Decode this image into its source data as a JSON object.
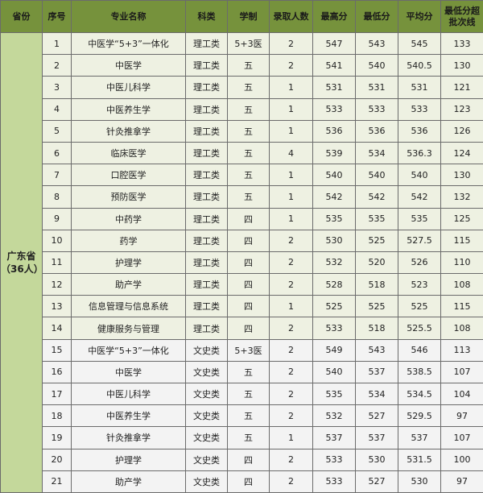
{
  "headers": [
    "省份",
    "序号",
    "专业名称",
    "科类",
    "学制",
    "录取人数",
    "最高分",
    "最低分",
    "平均分",
    "最低分超批次线"
  ],
  "province": {
    "name": "广东省",
    "count": "（36人）"
  },
  "colors": {
    "header": "#76923c",
    "province": "#c4d89b",
    "science_rows": "#eef1e2",
    "arts_rows": "#f3f3f3"
  },
  "rows": [
    [
      "1",
      "中医学“5+3”一体化",
      "理工类",
      "5+3医",
      "2",
      "547",
      "543",
      "545",
      "133"
    ],
    [
      "2",
      "中医学",
      "理工类",
      "五",
      "2",
      "541",
      "540",
      "540.5",
      "130"
    ],
    [
      "3",
      "中医儿科学",
      "理工类",
      "五",
      "1",
      "531",
      "531",
      "531",
      "121"
    ],
    [
      "4",
      "中医养生学",
      "理工类",
      "五",
      "1",
      "533",
      "533",
      "533",
      "123"
    ],
    [
      "5",
      "针灸推拿学",
      "理工类",
      "五",
      "1",
      "536",
      "536",
      "536",
      "126"
    ],
    [
      "6",
      "临床医学",
      "理工类",
      "五",
      "4",
      "539",
      "534",
      "536.3",
      "124"
    ],
    [
      "7",
      "口腔医学",
      "理工类",
      "五",
      "1",
      "540",
      "540",
      "540",
      "130"
    ],
    [
      "8",
      "预防医学",
      "理工类",
      "五",
      "1",
      "542",
      "542",
      "542",
      "132"
    ],
    [
      "9",
      "中药学",
      "理工类",
      "四",
      "1",
      "535",
      "535",
      "535",
      "125"
    ],
    [
      "10",
      "药学",
      "理工类",
      "四",
      "2",
      "530",
      "525",
      "527.5",
      "115"
    ],
    [
      "11",
      "护理学",
      "理工类",
      "四",
      "2",
      "532",
      "520",
      "526",
      "110"
    ],
    [
      "12",
      "助产学",
      "理工类",
      "四",
      "2",
      "528",
      "518",
      "523",
      "108"
    ],
    [
      "13",
      "信息管理与信息系统",
      "理工类",
      "四",
      "1",
      "525",
      "525",
      "525",
      "115"
    ],
    [
      "14",
      "健康服务与管理",
      "理工类",
      "四",
      "2",
      "533",
      "518",
      "525.5",
      "108"
    ],
    [
      "15",
      "中医学“5+3”一体化",
      "文史类",
      "5+3医",
      "2",
      "549",
      "543",
      "546",
      "113"
    ],
    [
      "16",
      "中医学",
      "文史类",
      "五",
      "2",
      "540",
      "537",
      "538.5",
      "107"
    ],
    [
      "17",
      "中医儿科学",
      "文史类",
      "五",
      "2",
      "535",
      "534",
      "534.5",
      "104"
    ],
    [
      "18",
      "中医养生学",
      "文史类",
      "五",
      "2",
      "532",
      "527",
      "529.5",
      "97"
    ],
    [
      "19",
      "针灸推拿学",
      "文史类",
      "五",
      "1",
      "537",
      "537",
      "537",
      "107"
    ],
    [
      "20",
      "护理学",
      "文史类",
      "四",
      "2",
      "533",
      "530",
      "531.5",
      "100"
    ],
    [
      "21",
      "助产学",
      "文史类",
      "四",
      "2",
      "533",
      "527",
      "530",
      "97"
    ]
  ]
}
